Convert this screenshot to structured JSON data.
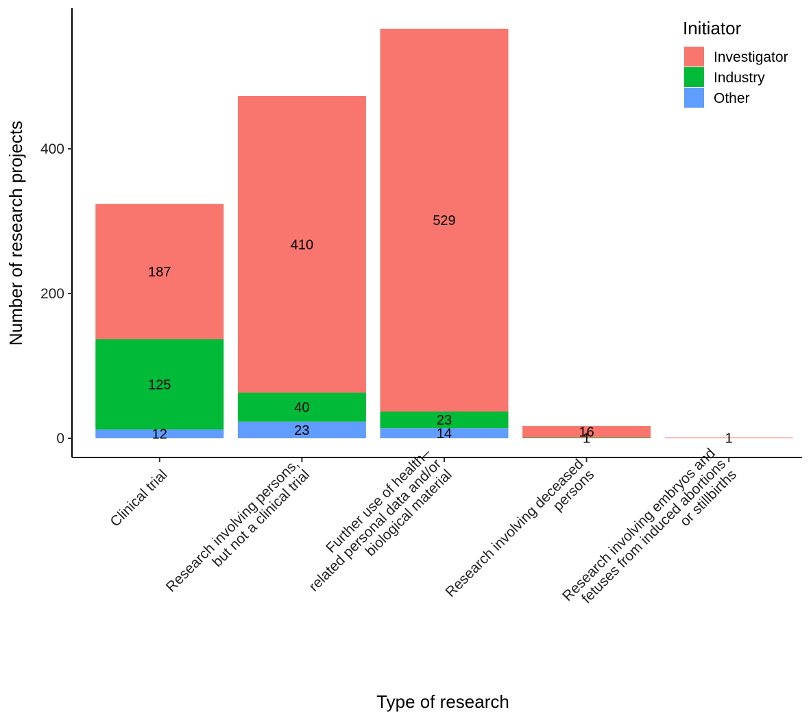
{
  "chart_data": {
    "type": "bar",
    "stacked": true,
    "xlabel": "Type of research",
    "ylabel": "Number of research projects",
    "ylim": [
      -25,
      575
    ],
    "yticks": [
      0,
      200,
      400
    ],
    "grid": false,
    "legend": {
      "title": "Initiator",
      "position": "top-right"
    },
    "categories": [
      [
        "Clinical trial"
      ],
      [
        "Research involving persons,",
        "but not a clinical trial"
      ],
      [
        "Further use of health–",
        "related personal data and/or",
        "biological material"
      ],
      [
        "Research involving deceased",
        "persons"
      ],
      [
        "Research involving embryos and",
        "fetuses from induced abortions",
        "or stillbirths"
      ]
    ],
    "series": [
      {
        "name": "Other",
        "color": "#619CFF",
        "values": [
          12,
          23,
          14,
          0,
          0
        ],
        "labels": [
          "12",
          "23",
          "14",
          "",
          ""
        ]
      },
      {
        "name": "Industry",
        "color": "#00BA38",
        "values": [
          125,
          40,
          23,
          1,
          0
        ],
        "labels": [
          "125",
          "40",
          "23",
          "1",
          ""
        ]
      },
      {
        "name": "Investigator",
        "color": "#F8766D",
        "values": [
          187,
          410,
          529,
          16,
          1
        ],
        "labels": [
          "187",
          "410",
          "529",
          "16",
          "1"
        ]
      }
    ],
    "legend_order": [
      "Investigator",
      "Industry",
      "Other"
    ]
  }
}
